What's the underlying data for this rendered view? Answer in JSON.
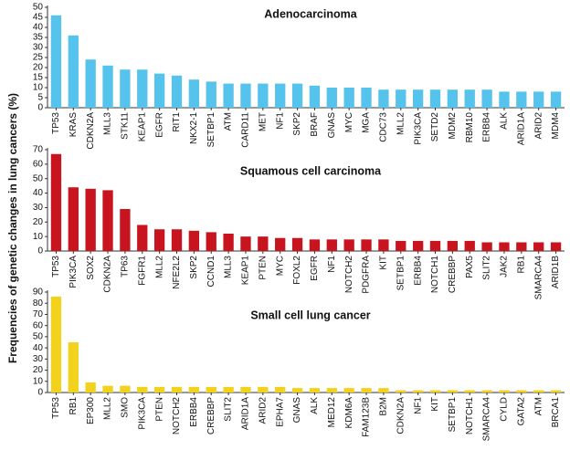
{
  "chart_data": [
    {
      "type": "bar",
      "title": "Adenocarcinoma",
      "ylabel": "Frequencies of genetic changes in lung cancers (%)",
      "color": "#55c3ec",
      "categories": [
        "TP53",
        "KRAS",
        "CDKN2A",
        "MLL3",
        "STK11",
        "KEAP1",
        "EGFR",
        "RIT1",
        "NKX2-1",
        "SETBP1",
        "ATM",
        "CARD11",
        "MET",
        "NF1",
        "SKP2",
        "BRAF",
        "GNAS",
        "MYC",
        "MGA",
        "CDC73",
        "MLL2",
        "PIK3CA",
        "SETD2",
        "MDM2",
        "RBM10",
        "ERBB4",
        "ALK",
        "ARID1A",
        "ARID2",
        "MDM4"
      ],
      "values": [
        46,
        36,
        24,
        21,
        19,
        19,
        17,
        16,
        14,
        13,
        12,
        12,
        12,
        12,
        12,
        11,
        10,
        10,
        10,
        9,
        9,
        9,
        9,
        9,
        9,
        9,
        8,
        8,
        8,
        8
      ],
      "ylim": [
        0,
        50
      ],
      "yticks": [
        0,
        5,
        10,
        15,
        20,
        25,
        30,
        35,
        40,
        45,
        50
      ]
    },
    {
      "type": "bar",
      "title": "Squamous cell carcinoma",
      "color": "#c8141e",
      "categories": [
        "TP53",
        "PIK3CA",
        "SOX2",
        "CDKN2A",
        "TP63",
        "FGFR1",
        "MLL2",
        "NFE2L2",
        "SKP2",
        "CCND1",
        "MLL3",
        "KEAP1",
        "PTEN",
        "MYC",
        "FOXL2",
        "EGFR",
        "NF1",
        "NOTCH2",
        "PDGFRA",
        "KIT",
        "SETBP1",
        "ERBB4",
        "NOTCH1",
        "CREBBP",
        "PAX5",
        "SLIT2",
        "JAK2",
        "RB1",
        "SMARCA4",
        "ARID1B"
      ],
      "values": [
        67,
        44,
        43,
        42,
        29,
        18,
        15,
        15,
        14,
        13,
        12,
        10,
        10,
        9,
        9,
        8,
        8,
        8,
        8,
        8,
        7,
        7,
        7,
        7,
        7,
        6,
        6,
        6,
        6,
        6
      ],
      "ylim": [
        0,
        70
      ],
      "yticks": [
        0,
        10,
        20,
        30,
        40,
        50,
        60,
        70
      ]
    },
    {
      "type": "bar",
      "title": "Small cell lung cancer",
      "color": "#f2d21c",
      "categories": [
        "TP53",
        "RB1",
        "EP300",
        "MLL2",
        "SMO",
        "PIK3CA",
        "PTEN",
        "NOTCH2",
        "ERBB4",
        "CREBBP",
        "SLIT2",
        "ARID1A",
        "ARID2",
        "EPHA7",
        "GNAS",
        "ALK",
        "MED12",
        "KDM6A",
        "FAM123B",
        "B2M",
        "CDKN2A",
        "NF1",
        "KIT",
        "SETBP1",
        "NOTCH1",
        "SMARCA4",
        "CYLD",
        "GATA2",
        "ATM",
        "BRCA1"
      ],
      "values": [
        86,
        45,
        9,
        6,
        6,
        5,
        5,
        5,
        5,
        5,
        5,
        5,
        5,
        5,
        4,
        4,
        4,
        4,
        4,
        4,
        2,
        2,
        2,
        2,
        2,
        2,
        2,
        2,
        2,
        2
      ],
      "ylim": [
        0,
        90
      ],
      "yticks": [
        0,
        10,
        20,
        30,
        40,
        50,
        60,
        70,
        80,
        90
      ]
    }
  ]
}
